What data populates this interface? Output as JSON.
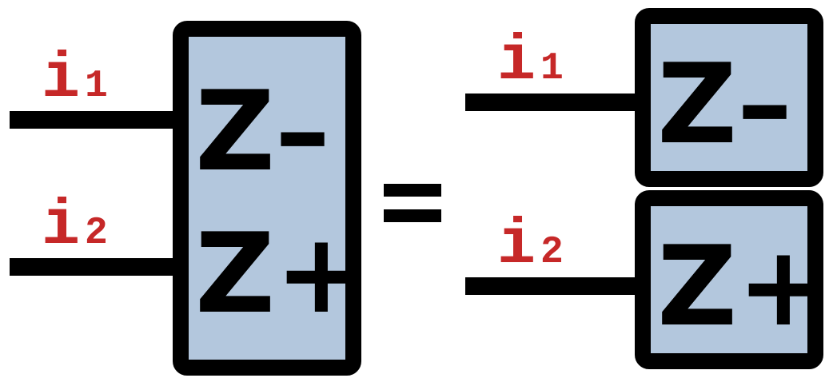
{
  "colors": {
    "box_fill": "#b3c7dd",
    "stroke": "#000000",
    "label": "#c62828"
  },
  "left": {
    "inputs": [
      {
        "letter": "i",
        "sub": "1"
      },
      {
        "letter": "i",
        "sub": "2"
      }
    ],
    "box": {
      "top_label": "Z–",
      "bottom_label": "Z+"
    }
  },
  "equals": "=",
  "right": {
    "inputs": [
      {
        "letter": "i",
        "sub": "1"
      },
      {
        "letter": "i",
        "sub": "2"
      }
    ],
    "boxes": [
      {
        "label": "Z–"
      },
      {
        "label": "Z+"
      }
    ]
  }
}
